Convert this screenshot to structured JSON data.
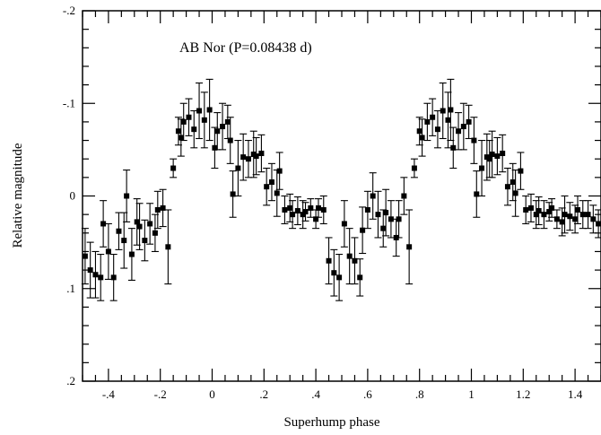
{
  "chart_data": {
    "type": "scatter",
    "title": "AB Nor (P=0.08438 d)",
    "xlabel": "Superhump phase",
    "ylabel": "Relative  magnitude",
    "xlim": [
      -0.5,
      1.5
    ],
    "ylim": [
      -0.2,
      0.2
    ],
    "y_inverted": true,
    "grid": false,
    "x_ticks": [
      -0.4,
      -0.2,
      0,
      0.2,
      0.4,
      0.6,
      0.8,
      1.0,
      1.2,
      1.4
    ],
    "x_tick_labels": [
      "-.4",
      "-.2",
      "0",
      ".2",
      ".4",
      ".6",
      ".8",
      "1",
      "1.2",
      "1.4"
    ],
    "y_ticks": [
      -0.2,
      -0.1,
      0,
      0.1,
      0.2
    ],
    "y_tick_labels": [
      "-.2",
      "-.1",
      "0",
      ".1",
      ".2"
    ],
    "marker": "filled square",
    "marker_color": "#000000",
    "series": [
      {
        "x": [
          -0.49,
          -0.47,
          -0.45,
          -0.43,
          -0.42,
          -0.4,
          -0.38,
          -0.36,
          -0.34,
          -0.33,
          -0.31,
          -0.29,
          -0.28,
          -0.26,
          -0.24,
          -0.22,
          -0.21,
          -0.19,
          -0.17,
          -0.15,
          -0.13,
          -0.12,
          -0.11,
          -0.09,
          -0.07,
          -0.05,
          -0.03,
          -0.01,
          0.01,
          0.02,
          0.04,
          0.06,
          0.07,
          0.08,
          0.1,
          0.12,
          0.14,
          0.16,
          0.17,
          0.19,
          0.21,
          0.23,
          0.25,
          0.26,
          0.28,
          0.3,
          0.31,
          0.33,
          0.35,
          0.36,
          0.38,
          0.4,
          0.41,
          0.43,
          0.45,
          0.47,
          0.49,
          0.51,
          0.53,
          0.55,
          0.57,
          0.58,
          0.6,
          0.62,
          0.64,
          0.66,
          0.67,
          0.69,
          0.71,
          0.72,
          0.74,
          0.76,
          0.78,
          0.8,
          0.81,
          0.83,
          0.85,
          0.87,
          0.89,
          0.91,
          0.92,
          0.93,
          0.95,
          0.97,
          0.99,
          1.01,
          1.02,
          1.04,
          1.06,
          1.07,
          1.08,
          1.1,
          1.12,
          1.14,
          1.16,
          1.17,
          1.19,
          1.21,
          1.23,
          1.25,
          1.26,
          1.28,
          1.3,
          1.31,
          1.33,
          1.35,
          1.36,
          1.38,
          1.4,
          1.41,
          1.43,
          1.45,
          1.47,
          1.49
        ],
        "y": [
          0.065,
          0.08,
          0.085,
          0.088,
          0.03,
          0.06,
          0.088,
          0.038,
          0.048,
          0.0,
          0.063,
          0.028,
          0.033,
          0.048,
          0.03,
          0.04,
          0.015,
          0.013,
          0.055,
          -0.03,
          -0.07,
          -0.063,
          -0.08,
          -0.085,
          -0.072,
          -0.092,
          -0.082,
          -0.093,
          -0.052,
          -0.07,
          -0.075,
          -0.08,
          -0.06,
          -0.002,
          -0.03,
          -0.042,
          -0.04,
          -0.045,
          -0.043,
          -0.046,
          -0.01,
          -0.015,
          -0.003,
          -0.027,
          0.015,
          0.013,
          0.02,
          0.016,
          0.02,
          0.017,
          0.013,
          0.025,
          0.013,
          0.015,
          0.07,
          0.083,
          0.088,
          0.03,
          0.065,
          0.07,
          0.088,
          0.037,
          0.015,
          0.0,
          0.02,
          0.035,
          0.018,
          0.025,
          0.045,
          0.025,
          0.0,
          0.055,
          -0.03,
          -0.07,
          -0.063,
          -0.08,
          -0.085,
          -0.072,
          -0.092,
          -0.082,
          -0.093,
          -0.052,
          -0.07,
          -0.075,
          -0.08,
          -0.06,
          -0.002,
          -0.03,
          -0.042,
          -0.04,
          -0.045,
          -0.043,
          -0.046,
          -0.01,
          -0.015,
          -0.003,
          -0.027,
          0.015,
          0.013,
          0.02,
          0.016,
          0.02,
          0.017,
          0.013,
          0.025,
          0.028,
          0.02,
          0.022,
          0.025,
          0.015,
          0.02,
          0.02,
          0.025,
          0.03
        ],
        "err": [
          0.03,
          0.03,
          0.025,
          0.025,
          0.025,
          0.03,
          0.025,
          0.02,
          0.03,
          0.028,
          0.028,
          0.025,
          0.025,
          0.022,
          0.022,
          0.02,
          0.02,
          0.02,
          0.04,
          0.01,
          0.015,
          0.02,
          0.02,
          0.02,
          0.02,
          0.03,
          0.03,
          0.033,
          0.022,
          0.02,
          0.025,
          0.018,
          0.025,
          0.025,
          0.03,
          0.025,
          0.02,
          0.025,
          0.02,
          0.02,
          0.02,
          0.02,
          0.025,
          0.02,
          0.015,
          0.015,
          0.015,
          0.015,
          0.015,
          0.01,
          0.01,
          0.01,
          0.01,
          0.015,
          0.025,
          0.025,
          0.025,
          0.025,
          0.03,
          0.025,
          0.02,
          0.025,
          0.02,
          0.025,
          0.025,
          0.02,
          0.025,
          0.02,
          0.02,
          0.02,
          0.02,
          0.04,
          0.01,
          0.015,
          0.02,
          0.02,
          0.02,
          0.02,
          0.03,
          0.03,
          0.033,
          0.022,
          0.02,
          0.025,
          0.018,
          0.025,
          0.025,
          0.03,
          0.025,
          0.02,
          0.025,
          0.02,
          0.02,
          0.02,
          0.02,
          0.025,
          0.02,
          0.015,
          0.015,
          0.015,
          0.015,
          0.015,
          0.01,
          0.01,
          0.01,
          0.015,
          0.02,
          0.015,
          0.015,
          0.015,
          0.015,
          0.015,
          0.015,
          0.015
        ]
      }
    ]
  }
}
